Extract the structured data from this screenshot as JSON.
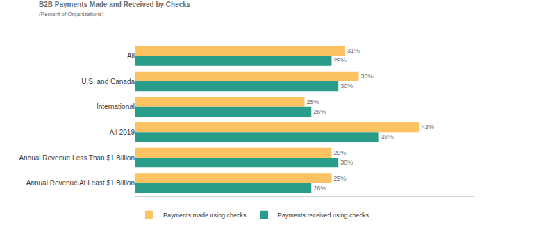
{
  "chart_data": {
    "type": "bar",
    "title": "B2B Payments Made and Received by Checks",
    "subtitle": "(Percent of Organizations)",
    "orientation": "horizontal",
    "categories": [
      "All",
      "U.S. and Canada",
      "International",
      "All 2019",
      "Annual Revenue Less Than $1 Billion",
      "Annual Revenue At Least $1 Billion"
    ],
    "series": [
      {
        "name": "Payments made using checks",
        "color": "#fdc261",
        "values": [
          31,
          33,
          25,
          42,
          29,
          29
        ],
        "value_labels": [
          "31%",
          "33%",
          "25%",
          "42%",
          "29%",
          "29%"
        ]
      },
      {
        "name": "Payments received using checks",
        "color": "#2a9d8a",
        "values": [
          29,
          30,
          26,
          36,
          30,
          26
        ],
        "value_labels": [
          "29%",
          "30%",
          "26%",
          "36%",
          "30%",
          "26%"
        ]
      }
    ],
    "xlim": [
      0,
      50
    ],
    "data_labels": true,
    "tick_labels": "y",
    "grid": false,
    "legend": "bottom-left"
  }
}
